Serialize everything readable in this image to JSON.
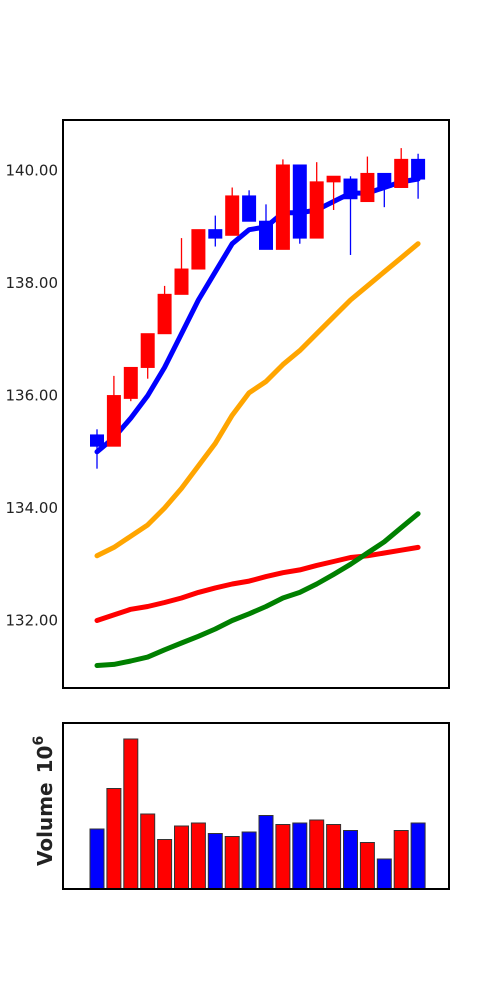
{
  "chart_data": [
    {
      "type": "candlestick",
      "title": "",
      "xlabel": "",
      "ylabel": "",
      "ylim": [
        130.8,
        140.9
      ],
      "yticks": [
        "132.00",
        "134.00",
        "136.00",
        "138.00",
        "140.00"
      ],
      "ytick_values": [
        132,
        134,
        136,
        138,
        140
      ],
      "grid": false,
      "colors": {
        "up": "#0000ff",
        "down": "#ff0000"
      },
      "candles": [
        {
          "open": 135.1,
          "high": 135.4,
          "low": 134.7,
          "close": 135.3,
          "direction": "up"
        },
        {
          "open": 136.0,
          "high": 136.35,
          "low": 135.1,
          "close": 135.1,
          "direction": "down"
        },
        {
          "open": 136.5,
          "high": 136.5,
          "low": 135.9,
          "close": 135.95,
          "direction": "down"
        },
        {
          "open": 137.1,
          "high": 137.1,
          "low": 136.3,
          "close": 136.5,
          "direction": "down"
        },
        {
          "open": 137.8,
          "high": 137.95,
          "low": 137.1,
          "close": 137.1,
          "direction": "down"
        },
        {
          "open": 138.25,
          "high": 138.8,
          "low": 137.8,
          "close": 137.8,
          "direction": "down"
        },
        {
          "open": 138.95,
          "high": 138.95,
          "low": 138.25,
          "close": 138.25,
          "direction": "down"
        },
        {
          "open": 138.8,
          "high": 139.2,
          "low": 138.65,
          "close": 138.95,
          "direction": "up"
        },
        {
          "open": 139.55,
          "high": 139.7,
          "low": 138.85,
          "close": 138.85,
          "direction": "down"
        },
        {
          "open": 139.1,
          "high": 139.65,
          "low": 139.1,
          "close": 139.55,
          "direction": "up"
        },
        {
          "open": 138.6,
          "high": 139.4,
          "low": 138.6,
          "close": 139.1,
          "direction": "up"
        },
        {
          "open": 140.1,
          "high": 140.2,
          "low": 138.6,
          "close": 138.6,
          "direction": "down"
        },
        {
          "open": 138.8,
          "high": 140.1,
          "low": 138.7,
          "close": 140.1,
          "direction": "up"
        },
        {
          "open": 139.8,
          "high": 140.15,
          "low": 138.8,
          "close": 138.8,
          "direction": "down"
        },
        {
          "open": 139.9,
          "high": 139.9,
          "low": 139.3,
          "close": 139.8,
          "direction": "down"
        },
        {
          "open": 139.5,
          "high": 139.9,
          "low": 138.5,
          "close": 139.85,
          "direction": "up"
        },
        {
          "open": 139.95,
          "high": 140.25,
          "low": 139.45,
          "close": 139.45,
          "direction": "down"
        },
        {
          "open": 139.7,
          "high": 139.95,
          "low": 139.35,
          "close": 139.95,
          "direction": "up"
        },
        {
          "open": 140.2,
          "high": 140.4,
          "low": 139.7,
          "close": 139.7,
          "direction": "down"
        },
        {
          "open": 139.85,
          "high": 140.3,
          "low": 139.5,
          "close": 140.2,
          "direction": "up"
        }
      ],
      "series": [
        {
          "color": "#0000ff",
          "values": [
            135.0,
            135.25,
            135.6,
            136.0,
            136.5,
            137.1,
            137.7,
            138.2,
            138.7,
            138.95,
            139.0,
            139.25,
            139.25,
            139.3,
            139.45,
            139.6,
            139.6,
            139.7,
            139.8,
            139.85
          ]
        },
        {
          "color": "#ffa500",
          "values": [
            133.15,
            133.3,
            133.5,
            133.7,
            134.0,
            134.35,
            134.75,
            135.15,
            135.65,
            136.05,
            136.25,
            136.55,
            136.8,
            137.1,
            137.4,
            137.7,
            137.95,
            138.2,
            138.45,
            138.7
          ]
        },
        {
          "color": "#ff0000",
          "values": [
            132.0,
            132.1,
            132.2,
            132.25,
            132.32,
            132.4,
            132.5,
            132.58,
            132.65,
            132.7,
            132.78,
            132.85,
            132.9,
            132.98,
            133.05,
            133.12,
            133.15,
            133.2,
            133.25,
            133.3
          ]
        },
        {
          "color": "#008000",
          "values": [
            131.2,
            131.22,
            131.28,
            131.35,
            131.48,
            131.6,
            131.72,
            131.85,
            132.0,
            132.12,
            132.25,
            132.4,
            132.5,
            132.65,
            132.82,
            133.0,
            133.2,
            133.4,
            133.65,
            133.9
          ]
        }
      ]
    },
    {
      "type": "bar",
      "title": "",
      "xlabel": "",
      "ylabel": "Volume",
      "ylabel_multiplier_base": "10",
      "ylabel_multiplier_exp": "6",
      "ylim": [
        0,
        1.0
      ],
      "grid": false,
      "values": [
        0.4,
        0.67,
        1.0,
        0.5,
        0.33,
        0.42,
        0.44,
        0.37,
        0.35,
        0.38,
        0.49,
        0.43,
        0.44,
        0.46,
        0.43,
        0.39,
        0.31,
        0.2,
        0.39,
        0.44
      ],
      "colors": [
        "#0000ff",
        "#ff0000",
        "#ff0000",
        "#ff0000",
        "#ff0000",
        "#ff0000",
        "#ff0000",
        "#0000ff",
        "#ff0000",
        "#0000ff",
        "#0000ff",
        "#ff0000",
        "#0000ff",
        "#ff0000",
        "#ff0000",
        "#0000ff",
        "#ff0000",
        "#0000ff",
        "#ff0000",
        "#0000ff"
      ]
    }
  ]
}
